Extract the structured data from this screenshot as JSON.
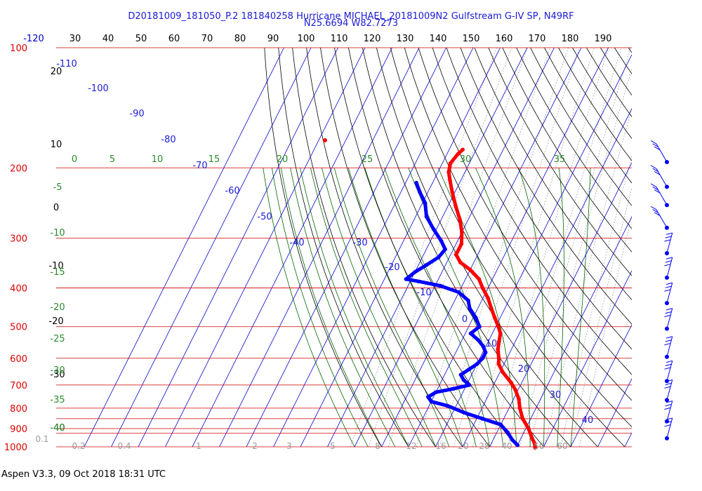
{
  "title_line1": "D20181009_181050_P.2 181840258 Hurricane MICHAEL_20181009N2 Gulfstream G-IV SP, N49RF",
  "title_line2": "N25.6694 W82.7273",
  "footer": "Aspen V3.3, 09 Oct 2018  18:31 UTC",
  "colors": {
    "temperature": "#ff0000",
    "dewpoint": "#0000ff",
    "isobar": "#cc0000",
    "isotherm": "#0000cc",
    "mixing_ratio": "#999999",
    "dry_adiabat": "#000000",
    "moist_adiabat": "#006600",
    "wind": "#0000ff"
  },
  "chart_data": {
    "type": "skew-t",
    "pressure_labels": [
      "100",
      "200",
      "300",
      "400",
      "500",
      "600",
      "700",
      "800",
      "900",
      "1000"
    ],
    "top_temperature_labels": [
      "-120",
      "30",
      "40",
      "50",
      "60",
      "70",
      "80",
      "90",
      "100",
      "110",
      "120",
      "130",
      "140",
      "150",
      "160",
      "170",
      "180",
      "190"
    ],
    "isotherm_labels": [
      "-110",
      "-100",
      "-90",
      "-80",
      "-70",
      "-60",
      "-50",
      "-40",
      "-30",
      "-20",
      "-10",
      "0",
      "10",
      "20",
      "30",
      "40"
    ],
    "dry_adiabat_labels": [
      "20",
      "10",
      "0",
      "-10",
      "-20",
      "-30",
      "-40"
    ],
    "moist_adiabat_labels_top": [
      "0",
      "5",
      "10",
      "15",
      "20",
      "25",
      "30",
      "35"
    ],
    "moist_adiabat_labels_left": [
      "-5",
      "-10",
      "-15",
      "-20",
      "-25",
      "-30",
      "-35",
      "-40"
    ],
    "mixing_ratio_labels": [
      "0.1",
      "0.2",
      "0.4",
      "1",
      "2",
      "3",
      "5",
      "8",
      "12",
      "16",
      "20",
      "28",
      "40",
      "50",
      "60"
    ],
    "temperature_profile": [
      {
        "p": 180,
        "t": -55
      },
      {
        "p": 185,
        "t": -56
      },
      {
        "p": 195,
        "t": -57
      },
      {
        "p": 205,
        "t": -56
      },
      {
        "p": 215,
        "t": -54
      },
      {
        "p": 230,
        "t": -51
      },
      {
        "p": 250,
        "t": -47
      },
      {
        "p": 270,
        "t": -43
      },
      {
        "p": 290,
        "t": -40
      },
      {
        "p": 310,
        "t": -38
      },
      {
        "p": 330,
        "t": -38
      },
      {
        "p": 345,
        "t": -35
      },
      {
        "p": 360,
        "t": -30
      },
      {
        "p": 380,
        "t": -25
      },
      {
        "p": 400,
        "t": -22
      },
      {
        "p": 425,
        "t": -18
      },
      {
        "p": 450,
        "t": -15
      },
      {
        "p": 475,
        "t": -12
      },
      {
        "p": 500,
        "t": -9
      },
      {
        "p": 520,
        "t": -7
      },
      {
        "p": 545,
        "t": -6
      },
      {
        "p": 570,
        "t": -5
      },
      {
        "p": 600,
        "t": -3
      },
      {
        "p": 620,
        "t": -2
      },
      {
        "p": 650,
        "t": 1
      },
      {
        "p": 690,
        "t": 6
      },
      {
        "p": 720,
        "t": 9
      },
      {
        "p": 760,
        "t": 12
      },
      {
        "p": 800,
        "t": 14
      },
      {
        "p": 850,
        "t": 17
      },
      {
        "p": 900,
        "t": 21
      },
      {
        "p": 950,
        "t": 24
      },
      {
        "p": 980,
        "t": 26
      },
      {
        "p": 1005,
        "t": 27
      }
    ],
    "dewpoint_profile": [
      {
        "p": 218,
        "t": -66
      },
      {
        "p": 230,
        "t": -63
      },
      {
        "p": 245,
        "t": -59
      },
      {
        "p": 265,
        "t": -56
      },
      {
        "p": 285,
        "t": -51
      },
      {
        "p": 305,
        "t": -46
      },
      {
        "p": 320,
        "t": -43
      },
      {
        "p": 335,
        "t": -44
      },
      {
        "p": 350,
        "t": -47
      },
      {
        "p": 365,
        "t": -50
      },
      {
        "p": 380,
        "t": -52
      },
      {
        "p": 385,
        "t": -47
      },
      {
        "p": 395,
        "t": -38
      },
      {
        "p": 410,
        "t": -30
      },
      {
        "p": 430,
        "t": -25
      },
      {
        "p": 450,
        "t": -23
      },
      {
        "p": 475,
        "t": -19
      },
      {
        "p": 500,
        "t": -16
      },
      {
        "p": 520,
        "t": -18
      },
      {
        "p": 540,
        "t": -14
      },
      {
        "p": 560,
        "t": -11
      },
      {
        "p": 580,
        "t": -9
      },
      {
        "p": 600,
        "t": -9
      },
      {
        "p": 620,
        "t": -10
      },
      {
        "p": 640,
        "t": -12
      },
      {
        "p": 660,
        "t": -14
      },
      {
        "p": 680,
        "t": -12
      },
      {
        "p": 700,
        "t": -9
      },
      {
        "p": 715,
        "t": -14
      },
      {
        "p": 730,
        "t": -20
      },
      {
        "p": 750,
        "t": -22
      },
      {
        "p": 770,
        "t": -20
      },
      {
        "p": 790,
        "t": -13
      },
      {
        "p": 820,
        "t": -6
      },
      {
        "p": 850,
        "t": 2
      },
      {
        "p": 880,
        "t": 10
      },
      {
        "p": 920,
        "t": 14
      },
      {
        "p": 960,
        "t": 17
      },
      {
        "p": 990,
        "t": 20
      }
    ],
    "wind_barbs": [
      {
        "p": 195
      },
      {
        "p": 225
      },
      {
        "p": 250
      },
      {
        "p": 285
      },
      {
        "p": 330
      },
      {
        "p": 380
      },
      {
        "p": 440
      },
      {
        "p": 510
      },
      {
        "p": 600
      },
      {
        "p": 690
      },
      {
        "p": 770
      },
      {
        "p": 870
      },
      {
        "p": 960
      }
    ]
  }
}
